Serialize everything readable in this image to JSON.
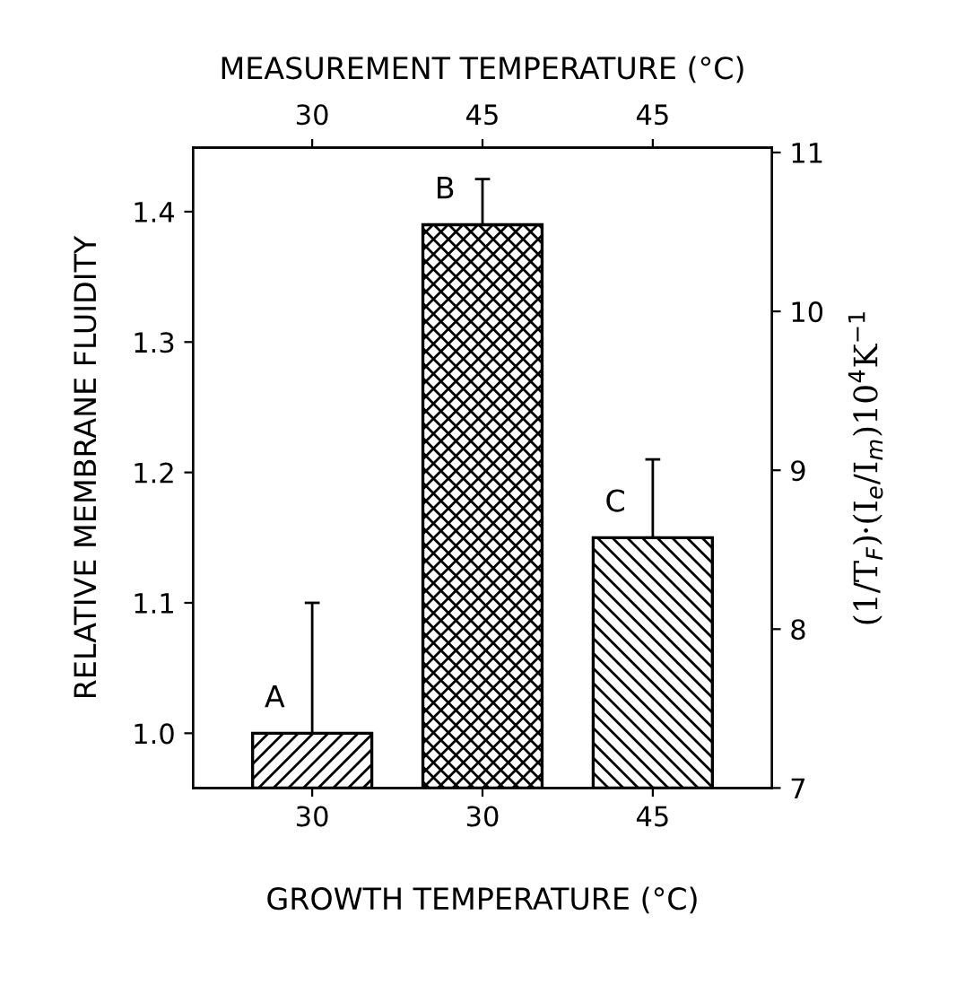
{
  "chart_data": {
    "type": "bar",
    "categories": [
      "30",
      "30",
      "45"
    ],
    "values": [
      1.0,
      1.39,
      1.15
    ],
    "errors": [
      [
        1.0,
        1.1
      ],
      [
        1.39,
        1.425
      ],
      [
        1.15,
        1.21
      ]
    ],
    "value_labels": [
      "A",
      "B",
      "C"
    ],
    "color": "#000000",
    "ylim": [
      0.958,
      1.449
    ],
    "yticks": [
      {
        "value": 1.0,
        "label": "1.0"
      },
      1.1,
      1.2,
      1.3,
      1.4
    ],
    "y2lim": [
      7,
      11.03
    ],
    "y2ticks": [
      7,
      8,
      9,
      10,
      11
    ],
    "xlabel": "GROWTH TEMPERATURE (°C)",
    "x2label": "MEASUREMENT TEMPERATURE (°C)",
    "ylabel": "RELATIVE MEMBRANE FLUIDITY",
    "y2label": "(1/T$_{F}$)·(I$_{e}$/I$_{m}$)10$^{4}$K$^{−1}$",
    "annotations": [
      "30",
      "45",
      "45"
    ],
    "grid": false
  }
}
